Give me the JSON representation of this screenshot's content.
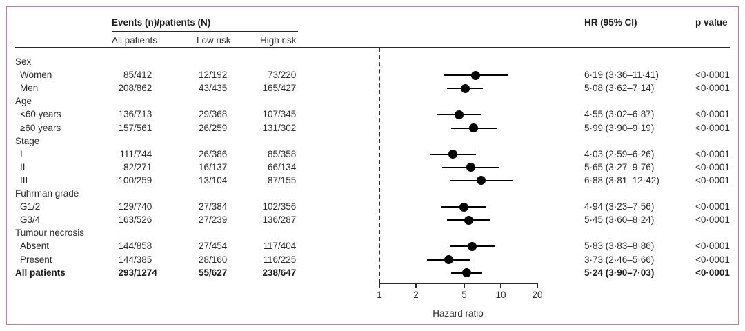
{
  "figure": {
    "border_color": "#b5819d",
    "background": "#ffffff"
  },
  "ui": {
    "slash": "/"
  },
  "chart_data": {
    "type": "scatter",
    "subtype": "forest-plot",
    "title": "",
    "xlabel": "Hazard ratio",
    "x_scale": "log",
    "x_range": [
      1,
      20
    ],
    "x_ticks": [
      "1",
      "2",
      "5",
      "10",
      "20"
    ],
    "reference_line": 1,
    "legend": "none",
    "columns": {
      "events_group": "Events (n)/patients (N)",
      "all": "All patients",
      "low": "Low risk",
      "high": "High risk",
      "hr": "HR (95% CI)",
      "p": "p value"
    },
    "rows": [
      {
        "type": "group",
        "label": "Sex"
      },
      {
        "type": "item",
        "label": "Women",
        "all": {
          "n": "85",
          "N": "412"
        },
        "low": {
          "n": "12",
          "N": "192"
        },
        "high": {
          "n": "73",
          "N": "220"
        },
        "hr": 6.19,
        "ci": [
          3.36,
          11.41
        ],
        "hr_text": "6·19 (3·36–11·41)",
        "p": "<0·0001"
      },
      {
        "type": "item",
        "label": "Men",
        "all": {
          "n": "208",
          "N": "862"
        },
        "low": {
          "n": "43",
          "N": "435"
        },
        "high": {
          "n": "165",
          "N": "427"
        },
        "hr": 5.08,
        "ci": [
          3.62,
          7.14
        ],
        "hr_text": "5·08 (3·62–7·14)",
        "p": "<0·0001"
      },
      {
        "type": "group",
        "label": "Age"
      },
      {
        "type": "item",
        "label": "<60 years",
        "all": {
          "n": "136",
          "N": "713"
        },
        "low": {
          "n": "29",
          "N": "368"
        },
        "high": {
          "n": "107",
          "N": "345"
        },
        "hr": 4.55,
        "ci": [
          3.02,
          6.87
        ],
        "hr_text": "4·55 (3·02–6·87)",
        "p": "<0·0001"
      },
      {
        "type": "item",
        "label": "≥60 years",
        "all": {
          "n": "157",
          "N": "561"
        },
        "low": {
          "n": "26",
          "N": "259"
        },
        "high": {
          "n": "131",
          "N": "302"
        },
        "hr": 5.99,
        "ci": [
          3.9,
          9.19
        ],
        "hr_text": "5·99 (3·90–9·19)",
        "p": "<0·0001"
      },
      {
        "type": "group",
        "label": "Stage"
      },
      {
        "type": "item",
        "label": "I",
        "all": {
          "n": "111",
          "N": "744"
        },
        "low": {
          "n": "26",
          "N": "386"
        },
        "high": {
          "n": "85",
          "N": "358"
        },
        "hr": 4.03,
        "ci": [
          2.59,
          6.26
        ],
        "hr_text": "4·03 (2·59–6·26)",
        "p": "<0·0001"
      },
      {
        "type": "item",
        "label": "II",
        "all": {
          "n": "82",
          "N": "271"
        },
        "low": {
          "n": "16",
          "N": "137"
        },
        "high": {
          "n": "66",
          "N": "134"
        },
        "hr": 5.65,
        "ci": [
          3.27,
          9.76
        ],
        "hr_text": "5·65 (3·27–9·76)",
        "p": "<0·0001"
      },
      {
        "type": "item",
        "label": "III",
        "all": {
          "n": "100",
          "N": "259"
        },
        "low": {
          "n": "13",
          "N": "104"
        },
        "high": {
          "n": "87",
          "N": "155"
        },
        "hr": 6.88,
        "ci": [
          3.81,
          12.42
        ],
        "hr_text": "6·88 (3·81–12·42)",
        "p": "<0·0001"
      },
      {
        "type": "group",
        "label": "Fuhrman grade"
      },
      {
        "type": "item",
        "label": "G1/2",
        "all": {
          "n": "129",
          "N": "740"
        },
        "low": {
          "n": "27",
          "N": "384"
        },
        "high": {
          "n": "102",
          "N": "356"
        },
        "hr": 4.94,
        "ci": [
          3.23,
          7.56
        ],
        "hr_text": "4·94 (3·23–7·56)",
        "p": "<0·0001"
      },
      {
        "type": "item",
        "label": "G3/4",
        "all": {
          "n": "163",
          "N": "526"
        },
        "low": {
          "n": "27",
          "N": "239"
        },
        "high": {
          "n": "136",
          "N": "287"
        },
        "hr": 5.45,
        "ci": [
          3.6,
          8.24
        ],
        "hr_text": "5·45 (3·60–8·24)",
        "p": "<0·0001"
      },
      {
        "type": "group",
        "label": "Tumour necrosis"
      },
      {
        "type": "item",
        "label": "Absent",
        "all": {
          "n": "144",
          "N": "858"
        },
        "low": {
          "n": "27",
          "N": "454"
        },
        "high": {
          "n": "117",
          "N": "404"
        },
        "hr": 5.83,
        "ci": [
          3.83,
          8.86
        ],
        "hr_text": "5·83 (3·83–8·86)",
        "p": "<0·0001"
      },
      {
        "type": "item",
        "label": "Present",
        "all": {
          "n": "144",
          "N": "385"
        },
        "low": {
          "n": "28",
          "N": "160"
        },
        "high": {
          "n": "116",
          "N": "225"
        },
        "hr": 3.73,
        "ci": [
          2.46,
          5.66
        ],
        "hr_text": "3·73 (2·46–5·66)",
        "p": "<0·0001"
      },
      {
        "type": "total",
        "label": "All patients",
        "all": {
          "n": "293",
          "N": "1274"
        },
        "low": {
          "n": "55",
          "N": "627"
        },
        "high": {
          "n": "238",
          "N": "647"
        },
        "hr": 5.24,
        "ci": [
          3.9,
          7.03
        ],
        "hr_text": "5·24 (3·90–7·03)",
        "p": "<0·0001"
      }
    ]
  }
}
